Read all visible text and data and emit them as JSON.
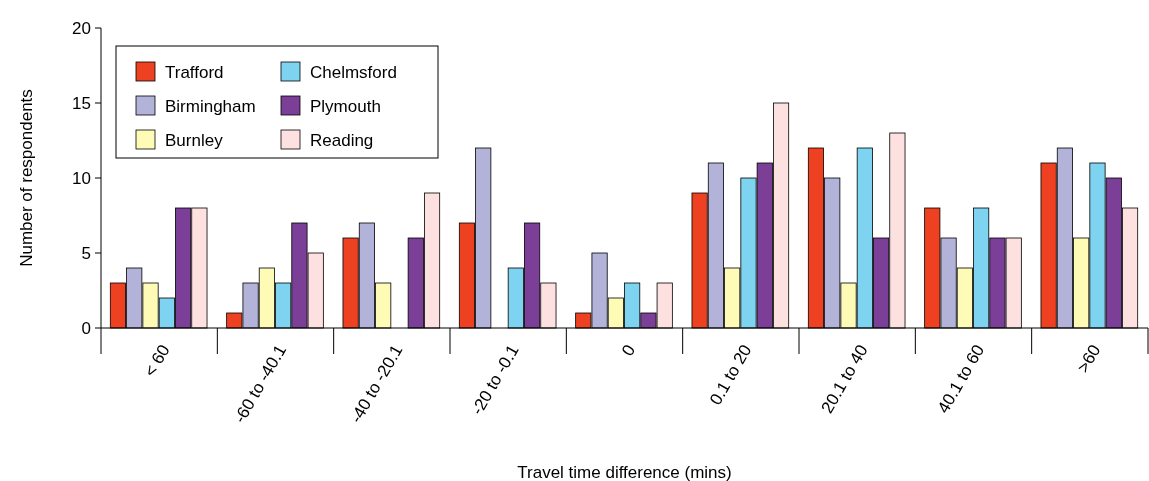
{
  "chart_data": {
    "type": "bar",
    "xlabel": "Travel time difference (mins)",
    "ylabel": "Number of respondents",
    "categories": [
      "< 60",
      "-60 to -40.1",
      "-40 to -20.1",
      "-20 to -0.1",
      "0",
      "0.1 to 20",
      "20.1 to 40",
      "40.1 to 60",
      ">60"
    ],
    "series": [
      {
        "name": "Trafford",
        "color": "#ee4122",
        "values": [
          3,
          1,
          6,
          7,
          1,
          9,
          12,
          8,
          11
        ]
      },
      {
        "name": "Birmingham",
        "color": "#b3b3d9",
        "values": [
          4,
          3,
          7,
          12,
          5,
          11,
          10,
          6,
          12
        ]
      },
      {
        "name": "Burnley",
        "color": "#fdfbb5",
        "values": [
          3,
          4,
          3,
          0,
          2,
          4,
          3,
          4,
          6
        ]
      },
      {
        "name": "Chelmsford",
        "color": "#7dd3f0",
        "values": [
          2,
          3,
          0,
          4,
          3,
          10,
          12,
          8,
          11
        ]
      },
      {
        "name": "Plymouth",
        "color": "#7b3f98",
        "values": [
          8,
          7,
          6,
          7,
          1,
          11,
          6,
          6,
          10
        ]
      },
      {
        "name": "Reading",
        "color": "#fde0e0",
        "values": [
          8,
          5,
          9,
          3,
          3,
          15,
          13,
          6,
          8
        ]
      }
    ],
    "ylim": [
      0,
      20
    ],
    "yticks": [
      0,
      5,
      10,
      15,
      20
    ],
    "grid": false,
    "legend": "top left"
  }
}
